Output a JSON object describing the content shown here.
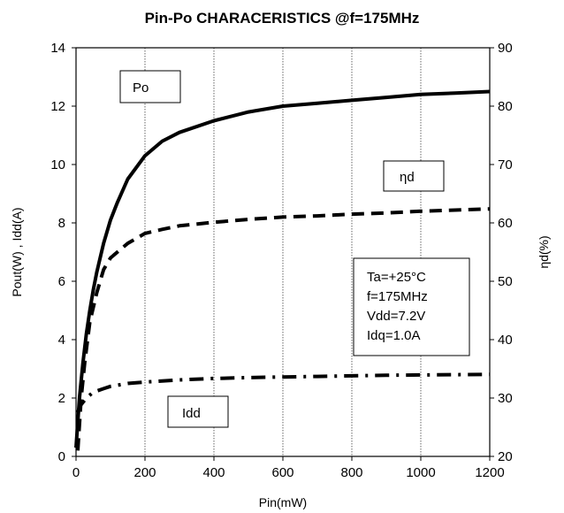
{
  "chart_data": {
    "type": "line",
    "title": "Pin-Po CHARACERISTICS @f=175MHz",
    "xlabel": "Pin(mW)",
    "ylabel_left": "Pout(W) , Idd(A)",
    "ylabel_right": "ηd(%)",
    "xlim": [
      0,
      1200
    ],
    "ylim_left": [
      0,
      14
    ],
    "ylim_right": [
      20,
      90
    ],
    "x_ticks": [
      0,
      200,
      400,
      600,
      800,
      1000,
      1200
    ],
    "y_left_ticks": [
      0,
      2,
      4,
      6,
      8,
      10,
      12,
      14
    ],
    "y_right_ticks": [
      20,
      30,
      40,
      50,
      60,
      70,
      80,
      90
    ],
    "grid": "vertical",
    "series": [
      {
        "name": "Po",
        "axis": "left",
        "style": "solid",
        "x": [
          0,
          10,
          20,
          30,
          40,
          50,
          60,
          80,
          100,
          120,
          150,
          200,
          250,
          300,
          400,
          500,
          600,
          700,
          800,
          900,
          1000,
          1100,
          1200
        ],
        "y": [
          0.3,
          2.0,
          3.2,
          4.2,
          5.0,
          5.7,
          6.3,
          7.3,
          8.1,
          8.7,
          9.5,
          10.3,
          10.8,
          11.1,
          11.5,
          11.8,
          12.0,
          12.1,
          12.2,
          12.3,
          12.4,
          12.45,
          12.5
        ]
      },
      {
        "name": "ηd",
        "axis": "right",
        "style": "dashed",
        "x": [
          5,
          15,
          25,
          40,
          60,
          80,
          100,
          150,
          200,
          250,
          300,
          400,
          500,
          600,
          700,
          800,
          900,
          1000,
          1100,
          1200
        ],
        "y": [
          21,
          30,
          36,
          43,
          48,
          52,
          54,
          56.5,
          58.2,
          58.9,
          59.5,
          60.1,
          60.6,
          61.0,
          61.2,
          61.5,
          61.7,
          62.0,
          62.2,
          62.4
        ]
      },
      {
        "name": "Idd",
        "axis": "left",
        "style": "dash-dot",
        "x": [
          5,
          10,
          20,
          30,
          50,
          80,
          100,
          150,
          200,
          300,
          400,
          500,
          600,
          700,
          800,
          900,
          1000,
          1100,
          1200
        ],
        "y": [
          1.5,
          1.7,
          1.85,
          2.0,
          2.2,
          2.32,
          2.4,
          2.5,
          2.55,
          2.62,
          2.67,
          2.7,
          2.72,
          2.74,
          2.76,
          2.78,
          2.79,
          2.8,
          2.81
        ]
      }
    ],
    "annotations": {
      "po_label": "Po",
      "eta_label": "ηd",
      "idd_label": "Idd",
      "conditions": [
        "Ta=+25°C",
        "f=175MHz",
        "Vdd=7.2V",
        "Idq=1.0A"
      ]
    }
  }
}
